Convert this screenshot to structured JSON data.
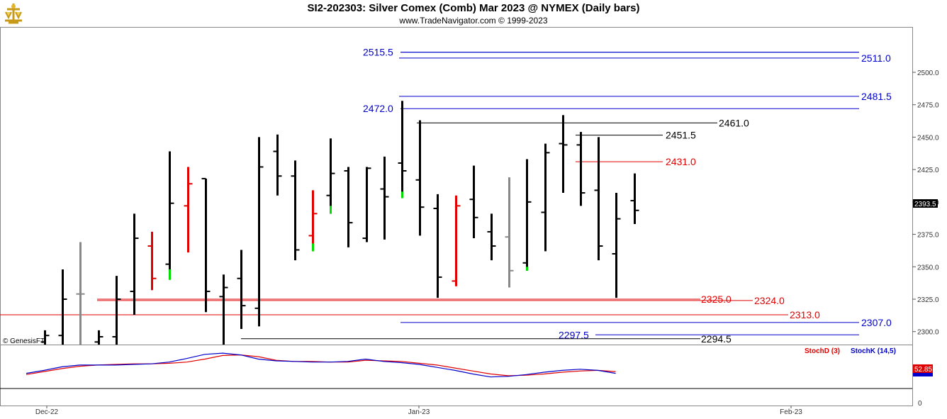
{
  "header": {
    "title": "SI2-202303:  Silver Comex (Comb) Mar 2023 @ NYMEX  (Daily bars)",
    "subtitle": "www.TradeNavigator.com © 1999-2023"
  },
  "watermark": "© GenesisFT",
  "colors": {
    "up": "#000000",
    "down_red": "#e00000",
    "green": "#00dd00",
    "gray": "#888888",
    "blue": "#0000cc",
    "red": "#e00000"
  },
  "chart_data": {
    "type": "ohlc",
    "ylim": [
      2290,
      2535
    ],
    "y_ticks": [
      2300,
      2325,
      2350,
      2375,
      2400,
      2425,
      2450,
      2475,
      2500
    ],
    "x_labels": [
      "Dec-22",
      "Jan-23",
      "Feb-23"
    ],
    "last_price": "2393.5",
    "bars": [
      {
        "h": 2301,
        "l": 2290,
        "o": 2292,
        "c": 2297,
        "color": "black"
      },
      {
        "h": 2348,
        "l": 2290,
        "o": 2297,
        "c": 2325,
        "color": "black"
      },
      {
        "h": 2369,
        "l": 2290,
        "o": 2329,
        "c": 2329,
        "color": "gray"
      },
      {
        "h": 2301,
        "l": 2290,
        "o": 2292,
        "c": 2296,
        "color": "black"
      },
      {
        "h": 2343,
        "l": 2290,
        "o": 2296,
        "c": 2325,
        "color": "black"
      },
      {
        "h": 2391,
        "l": 2313,
        "o": 2331,
        "c": 2372,
        "color": "black"
      },
      {
        "h": 2377,
        "l": 2332,
        "o": 2366,
        "c": 2341,
        "color": "red"
      },
      {
        "h": 2439,
        "l": 2340,
        "o": 2352,
        "c": 2399,
        "color": "black",
        "green_tail": [
          2340,
          2348
        ]
      },
      {
        "h": 2427,
        "l": 2361,
        "o": 2397,
        "c": 2414,
        "color": "red",
        "pre": 2414
      },
      {
        "h": 2418,
        "l": 2315,
        "o": 2418,
        "c": 2331,
        "color": "black"
      },
      {
        "h": 2344,
        "l": 2290,
        "o": 2327,
        "c": 2334,
        "color": "black"
      },
      {
        "h": 2363,
        "l": 2302,
        "o": 2341,
        "c": 2320,
        "color": "black"
      },
      {
        "h": 2450,
        "l": 2304,
        "o": 2318,
        "c": 2427,
        "color": "black"
      },
      {
        "h": 2452,
        "l": 2405,
        "o": 2439,
        "c": 2420,
        "color": "black"
      },
      {
        "h": 2432,
        "l": 2355,
        "o": 2420,
        "c": 2363,
        "color": "black"
      },
      {
        "h": 2409,
        "l": 2362,
        "o": 2374,
        "c": 2391,
        "color": "red",
        "green_tail": [
          2362,
          2368
        ]
      },
      {
        "h": 2449,
        "l": 2391,
        "o": 2405,
        "c": 2422,
        "color": "black",
        "green_tail": [
          2391,
          2397
        ]
      },
      {
        "h": 2427,
        "l": 2365,
        "o": 2424,
        "c": 2384,
        "color": "black"
      },
      {
        "h": 2427,
        "l": 2369,
        "o": 2372,
        "c": 2426,
        "color": "black"
      },
      {
        "h": 2435,
        "l": 2371,
        "o": 2410,
        "c": 2404,
        "color": "black"
      },
      {
        "h": 2478,
        "l": 2403,
        "o": 2430,
        "c": 2424,
        "color": "black",
        "green_tail": [
          2403,
          2408
        ]
      },
      {
        "h": 2463,
        "l": 2374,
        "o": 2417,
        "c": 2396,
        "color": "black"
      },
      {
        "h": 2406,
        "l": 2326,
        "o": 2395,
        "c": 2342,
        "color": "black"
      },
      {
        "h": 2405,
        "l": 2335,
        "o": 2339,
        "c": 2397,
        "color": "red"
      },
      {
        "h": 2428,
        "l": 2372,
        "o": 2402,
        "c": 2388,
        "color": "black"
      },
      {
        "h": 2391,
        "l": 2355,
        "o": 2377,
        "c": 2366,
        "color": "black"
      },
      {
        "h": 2419,
        "l": 2334,
        "o": 2373,
        "c": 2347,
        "color": "gray"
      },
      {
        "h": 2433,
        "l": 2347,
        "o": 2353,
        "c": 2400,
        "color": "black",
        "green_tail": [
          2347,
          2350
        ]
      },
      {
        "h": 2445,
        "l": 2362,
        "o": 2392,
        "c": 2438,
        "color": "black"
      },
      {
        "h": 2467,
        "l": 2407,
        "o": 2445,
        "c": 2444,
        "color": "black"
      },
      {
        "h": 2454,
        "l": 2397,
        "o": 2444,
        "c": 2407,
        "color": "black"
      },
      {
        "h": 2450,
        "l": 2355,
        "o": 2409,
        "c": 2366,
        "color": "black"
      },
      {
        "h": 2407,
        "l": 2326,
        "o": 2360,
        "c": 2387,
        "color": "black"
      },
      {
        "h": 2422,
        "l": 2383,
        "o": 2401,
        "c": 2393.5,
        "color": "black"
      }
    ],
    "levels": [
      {
        "label": "2515.5",
        "value": 2515.5,
        "color": "blue",
        "side": "left"
      },
      {
        "label": "2511.0",
        "value": 2511.0,
        "color": "blue",
        "side": "right"
      },
      {
        "label": "2481.5",
        "value": 2481.5,
        "color": "blue",
        "side": "right"
      },
      {
        "label": "2472.0",
        "value": 2472.0,
        "color": "blue",
        "side": "left"
      },
      {
        "label": "2461.0",
        "value": 2461.0,
        "color": "black",
        "side": "mid"
      },
      {
        "label": "2451.5",
        "value": 2451.5,
        "color": "black",
        "side": "mid2"
      },
      {
        "label": "2431.0",
        "value": 2431.0,
        "color": "red",
        "side": "mid2"
      },
      {
        "label": "2325.0",
        "value": 2325.0,
        "color": "red",
        "side": "mid3"
      },
      {
        "label": "2324.0",
        "value": 2324.0,
        "color": "red",
        "side": "mid4"
      },
      {
        "label": "2313.0",
        "value": 2313.0,
        "color": "red",
        "side": "mid5"
      },
      {
        "label": "2307.0",
        "value": 2307.0,
        "color": "blue",
        "side": "right"
      },
      {
        "label": "2297.5",
        "value": 2297.5,
        "color": "blue",
        "side": "left2"
      },
      {
        "label": "2294.5",
        "value": 2294.5,
        "color": "black",
        "side": "mid3"
      }
    ],
    "indicator": {
      "stochd_label": "StochD (3)",
      "stochk_label": "StochK (14,5)",
      "last_value": "52.85",
      "axis_label": "0",
      "stochd": [
        52,
        57,
        62,
        66,
        68,
        69,
        70,
        70,
        71,
        73,
        78,
        84,
        85,
        82,
        76,
        74,
        74,
        73,
        73,
        76,
        75,
        74,
        71,
        68,
        63,
        58,
        53,
        50,
        51,
        53,
        56,
        58,
        59,
        57
      ],
      "stochk": [
        54,
        59,
        65,
        68,
        68,
        68,
        69,
        70,
        73,
        79,
        86,
        88,
        85,
        78,
        75,
        74,
        73,
        73,
        74,
        78,
        74,
        72,
        69,
        64,
        59,
        53,
        48,
        49,
        52,
        56,
        59,
        61,
        59,
        54
      ]
    }
  }
}
